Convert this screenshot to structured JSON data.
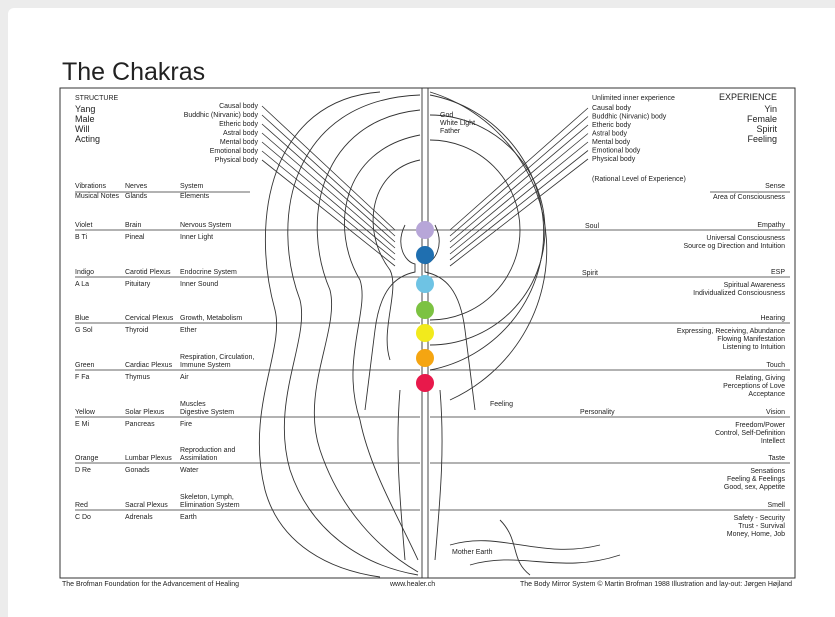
{
  "title": "The Chakras",
  "left_header": {
    "heading": "STRUCTURE",
    "lines": [
      "Yang",
      "Male",
      "Will",
      "Acting"
    ]
  },
  "right_header": {
    "heading": "EXPERIENCE",
    "lines": [
      "Yin",
      "Female",
      "Spirit",
      "Feeling"
    ]
  },
  "bodies_left": [
    "Causal body",
    "Buddhic (Nirvanic) body",
    "Etheric body",
    "Astral body",
    "Mental body",
    "Emotional body",
    "Physical body"
  ],
  "bodies_right": {
    "top": "Unlimited inner experience",
    "items": [
      "Causal body",
      "Buddhic (Nirvanic) body",
      "Etheric body",
      "Astral body",
      "Mental body",
      "Emotional body",
      "Physical body"
    ],
    "bottom": "(Rational Level of Experience)"
  },
  "columns_left": [
    [
      "Vibrations",
      "Nerves",
      "System"
    ],
    [
      "Musical Notes",
      "Glands",
      "Elements"
    ]
  ],
  "columns_right": [
    "Sense",
    "Area of Consciousness"
  ],
  "chakras": [
    {
      "color_name": "Violet",
      "note": "B  Ti",
      "nerve": "Brain",
      "gland": "Pineal",
      "system": [
        "Nervous System"
      ],
      "element": "Inner Light",
      "dot": "#b7a6d8",
      "sense": "Empathy",
      "experience": [
        "Universal Consciousness",
        "Source og Direction and Intuition"
      ]
    },
    {
      "color_name": "Indigo",
      "note": "A  La",
      "nerve": "Carotid Plexus",
      "gland": "Pituitary",
      "system": [
        "Endocrine System"
      ],
      "element": "Inner Sound",
      "dot": "#1f6fb0",
      "sense": "ESP",
      "experience": [
        "Spiritual Awareness",
        "Individualized Consciousness"
      ]
    },
    {
      "color_name": "Blue",
      "note": "G  Sol",
      "nerve": "Cervical Plexus",
      "gland": "Thyroid",
      "system": [
        "Growth, Metabolism"
      ],
      "element": "Ether",
      "dot": "#6ec3e4",
      "sense": "Hearing",
      "experience": [
        "Expressing, Receiving, Abundance",
        "Flowing Manifestation",
        "Listening to Intuition"
      ]
    },
    {
      "color_name": "Green",
      "note": "F  Fa",
      "nerve": "Cardiac Plexus",
      "gland": "Thymus",
      "system": [
        "Respiration, Circulation,",
        "Immune System"
      ],
      "element": "Air",
      "dot": "#7cc242",
      "sense": "Touch",
      "experience": [
        "Relating, Giving",
        "Perceptions of Love",
        "Acceptance"
      ]
    },
    {
      "color_name": "Yellow",
      "note": "E  Mi",
      "nerve": "Solar Plexus",
      "gland": "Pancreas",
      "system": [
        "Muscles",
        "Digestive System"
      ],
      "element": "Fire",
      "dot": "#f2ea1c",
      "sense": "Vision",
      "experience": [
        "Freedom/Power",
        "Control, Self-Definition",
        "Intellect"
      ]
    },
    {
      "color_name": "Orange",
      "note": "D  Re",
      "nerve": "Lumbar Plexus",
      "gland": "Gonads",
      "system": [
        "Reproduction and",
        "Assimilation"
      ],
      "element": "Water",
      "dot": "#f5a511",
      "sense": "Taste",
      "experience": [
        "Sensations",
        "Feeling & Feelings",
        "Good, sex, Appetite"
      ]
    },
    {
      "color_name": "Red",
      "note": "C  Do",
      "nerve": "Sacral Plexus",
      "gland": "Adrenals",
      "system": [
        "Skeleton, Lymph,",
        "Elimination System"
      ],
      "element": "Earth",
      "dot": "#e8194b",
      "sense": "Smell",
      "experience": [
        "Safety - Security",
        "Trust - Survival",
        "Money, Home, Job"
      ]
    }
  ],
  "center_labels": {
    "god": [
      "God",
      "White Light",
      "Father"
    ],
    "soul": "Soul",
    "spirit": "Spirit",
    "personality": "Personality",
    "feeling": "Feeling",
    "mother_earth": "Mother Earth"
  },
  "footer": [
    "The Brofman Foundation for the Advancement of Healing",
    "www.healer.ch",
    "The Body Mirror System  © Martin Brofman 1988  Illustration and lay-out: Jørgen Højland"
  ]
}
